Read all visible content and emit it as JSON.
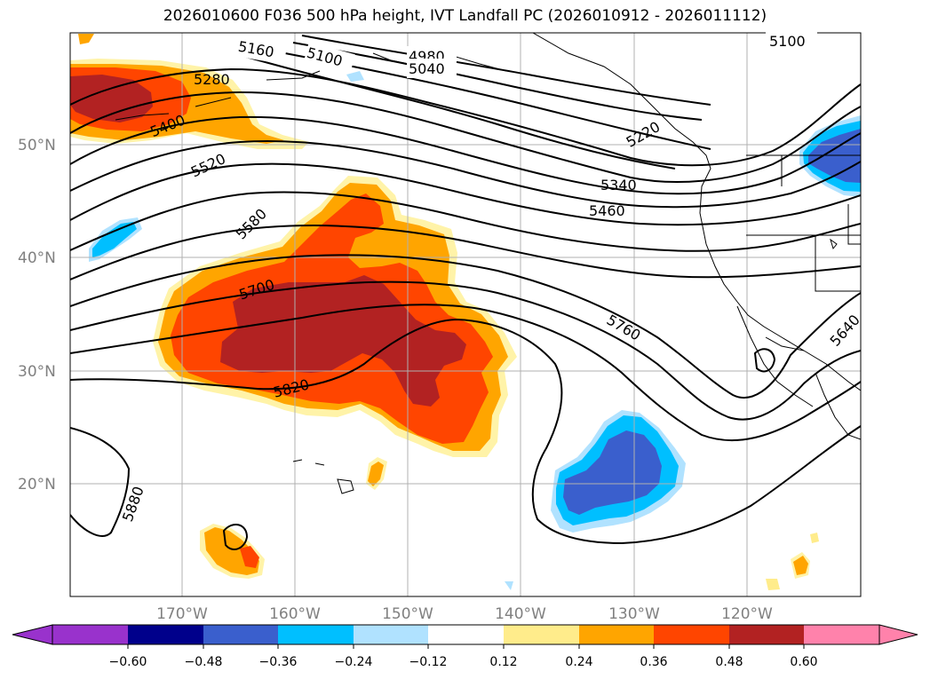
{
  "title": "2026010600 F036 500 hPa height, IVT Landfall PC (2026010912 - 2026011112)",
  "map": {
    "lat_ticks": [
      "50°N",
      "40°N",
      "30°N",
      "20°N"
    ],
    "lon_ticks": [
      "170°W",
      "160°W",
      "150°W",
      "140°W",
      "130°W",
      "120°W"
    ],
    "contour_labels": [
      "5160",
      "5100",
      "4980",
      "5040",
      "5100",
      "5280",
      "5400",
      "5520",
      "5580",
      "5700",
      "5820",
      "5880",
      "5220",
      "5340",
      "5460",
      "5760",
      "5640"
    ]
  },
  "colorbar": {
    "tick_labels": [
      "−0.60",
      "−0.48",
      "−0.36",
      "−0.24",
      "−0.12",
      "0.12",
      "0.24",
      "0.36",
      "0.48",
      "0.60"
    ],
    "colors": [
      "#9932cc",
      "#00008b",
      "#3a5fcd",
      "#00bfff",
      "#b0e2ff",
      "#ffffff",
      "#ffec8b",
      "#ffa500",
      "#ff4500",
      "#b22222",
      "#ff82ab"
    ]
  },
  "colors": {
    "grid": "#b0b0b0",
    "label_gray": "#808080"
  }
}
